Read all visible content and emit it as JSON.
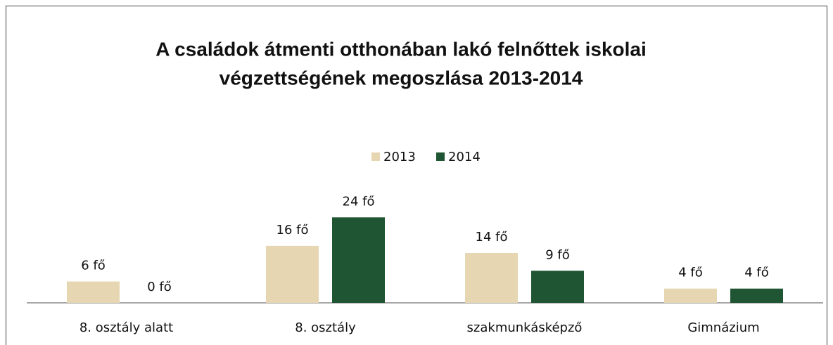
{
  "chart_data": {
    "type": "bar",
    "title": [
      "A családok átmenti otthonában lakó felnőttek iskolai",
      "végzettségének megoszlása  2013-2014"
    ],
    "categories": [
      "8. osztály alatt",
      "8. osztály",
      "szakmunkásképző",
      "Gimnázium"
    ],
    "series": [
      {
        "name": "2013",
        "color": "#e6d6b2",
        "values": [
          6,
          16,
          14,
          4
        ],
        "value_labels": [
          "6 fő",
          "16 fő",
          "14 fő",
          "4 fő"
        ]
      },
      {
        "name": "2014",
        "color": "#1f5532",
        "values": [
          0,
          24,
          9,
          4
        ],
        "value_labels": [
          "0 fő",
          "24 fő",
          "9 fő",
          "4 fő"
        ]
      }
    ],
    "legend": "top"
  }
}
